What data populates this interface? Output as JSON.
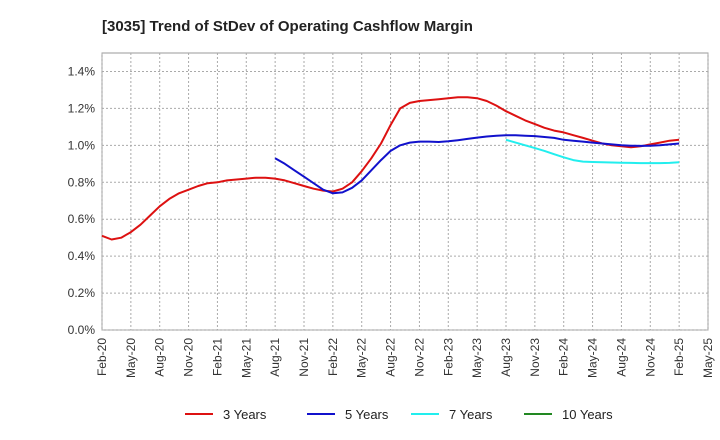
{
  "chart_data": {
    "type": "line",
    "title": "[3035]  Trend of StDev of Operating Cashflow Margin",
    "xlabel": "",
    "ylabel": "",
    "x_ticks": [
      "Feb-20",
      "May-20",
      "Aug-20",
      "Nov-20",
      "Feb-21",
      "May-21",
      "Aug-21",
      "Nov-21",
      "Feb-22",
      "May-22",
      "Aug-22",
      "Nov-22",
      "Feb-23",
      "May-23",
      "Aug-23",
      "Nov-23",
      "Feb-24",
      "May-24",
      "Aug-24",
      "Nov-24",
      "Feb-25",
      "May-25"
    ],
    "y_ticks": [
      "0.0%",
      "0.2%",
      "0.4%",
      "0.6%",
      "0.8%",
      "1.0%",
      "1.2%",
      "1.4%"
    ],
    "ylim": [
      0,
      1.5
    ],
    "grid": true,
    "legend_position": "bottom",
    "series": [
      {
        "name": "3 Years",
        "color": "#dd1111",
        "x": [
          "Feb-20",
          "Mar-20",
          "Apr-20",
          "May-20",
          "Jun-20",
          "Jul-20",
          "Aug-20",
          "Sep-20",
          "Oct-20",
          "Nov-20",
          "Dec-20",
          "Jan-21",
          "Feb-21",
          "Mar-21",
          "Apr-21",
          "May-21",
          "Jun-21",
          "Jul-21",
          "Aug-21",
          "Sep-21",
          "Oct-21",
          "Nov-21",
          "Dec-21",
          "Jan-22",
          "Feb-22",
          "Mar-22",
          "Apr-22",
          "May-22",
          "Jun-22",
          "Jul-22",
          "Aug-22",
          "Sep-22",
          "Oct-22",
          "Nov-22",
          "Dec-22",
          "Jan-23",
          "Feb-23",
          "Mar-23",
          "Apr-23",
          "May-23",
          "Jun-23",
          "Jul-23",
          "Aug-23",
          "Sep-23",
          "Oct-23",
          "Nov-23",
          "Dec-23",
          "Jan-24",
          "Feb-24",
          "Mar-24",
          "Apr-24",
          "May-24",
          "Jun-24",
          "Jul-24",
          "Aug-24",
          "Sep-24",
          "Oct-24",
          "Nov-24",
          "Dec-24",
          "Jan-25",
          "Feb-25"
        ],
        "values": [
          0.51,
          0.49,
          0.5,
          0.53,
          0.57,
          0.62,
          0.67,
          0.71,
          0.74,
          0.76,
          0.78,
          0.795,
          0.8,
          0.81,
          0.815,
          0.82,
          0.825,
          0.825,
          0.82,
          0.81,
          0.795,
          0.78,
          0.765,
          0.755,
          0.75,
          0.765,
          0.8,
          0.86,
          0.93,
          1.01,
          1.11,
          1.2,
          1.23,
          1.24,
          1.245,
          1.25,
          1.255,
          1.26,
          1.26,
          1.255,
          1.24,
          1.215,
          1.185,
          1.16,
          1.135,
          1.115,
          1.095,
          1.08,
          1.07,
          1.055,
          1.04,
          1.025,
          1.01,
          1.0,
          0.995,
          0.99,
          0.995,
          1.005,
          1.015,
          1.025,
          1.03
        ]
      },
      {
        "name": "5 Years",
        "color": "#1111cc",
        "x": [
          "Aug-21",
          "Sep-21",
          "Oct-21",
          "Nov-21",
          "Dec-21",
          "Jan-22",
          "Feb-22",
          "Mar-22",
          "Apr-22",
          "May-22",
          "Jun-22",
          "Jul-22",
          "Aug-22",
          "Sep-22",
          "Oct-22",
          "Nov-22",
          "Dec-22",
          "Jan-23",
          "Feb-23",
          "Mar-23",
          "Apr-23",
          "May-23",
          "Jun-23",
          "Jul-23",
          "Aug-23",
          "Sep-23",
          "Oct-23",
          "Nov-23",
          "Dec-23",
          "Jan-24",
          "Feb-24",
          "Mar-24",
          "Apr-24",
          "May-24",
          "Jun-24",
          "Jul-24",
          "Aug-24",
          "Sep-24",
          "Oct-24",
          "Nov-24",
          "Dec-24",
          "Jan-25",
          "Feb-25"
        ],
        "values": [
          0.93,
          0.9,
          0.865,
          0.83,
          0.795,
          0.76,
          0.74,
          0.745,
          0.77,
          0.81,
          0.865,
          0.92,
          0.97,
          1.0,
          1.015,
          1.02,
          1.02,
          1.018,
          1.022,
          1.028,
          1.035,
          1.042,
          1.048,
          1.052,
          1.055,
          1.055,
          1.052,
          1.05,
          1.045,
          1.04,
          1.03,
          1.025,
          1.02,
          1.015,
          1.01,
          1.005,
          1.0,
          0.998,
          0.997,
          0.998,
          1.0,
          1.005,
          1.01
        ]
      },
      {
        "name": "7 Years",
        "color": "#22eeee",
        "x": [
          "Aug-23",
          "Sep-23",
          "Oct-23",
          "Nov-23",
          "Dec-23",
          "Jan-24",
          "Feb-24",
          "Mar-24",
          "Apr-24",
          "May-24",
          "Jun-24",
          "Jul-24",
          "Aug-24",
          "Sep-24",
          "Oct-24",
          "Nov-24",
          "Dec-24",
          "Jan-25",
          "Feb-25"
        ],
        "values": [
          1.03,
          1.015,
          1.0,
          0.985,
          0.97,
          0.952,
          0.935,
          0.92,
          0.912,
          0.91,
          0.908,
          0.907,
          0.906,
          0.905,
          0.904,
          0.904,
          0.904,
          0.905,
          0.908
        ]
      },
      {
        "name": "10 Years",
        "color": "#228822",
        "x": [],
        "values": []
      }
    ]
  }
}
